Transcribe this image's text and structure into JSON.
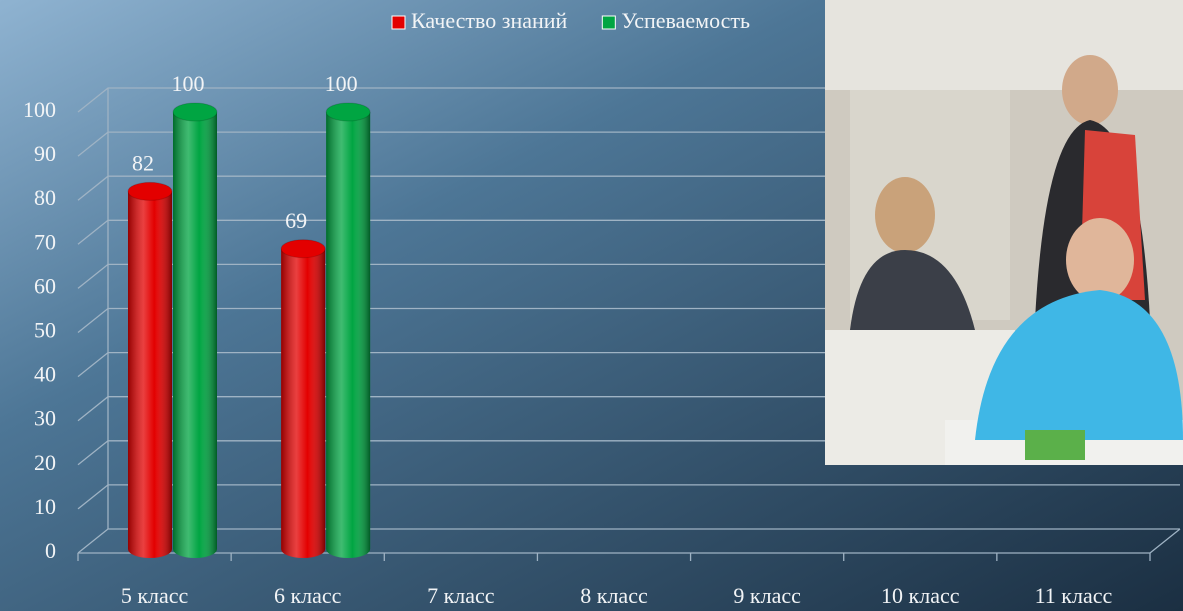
{
  "chart_data": {
    "type": "bar",
    "categories": [
      "5 класс",
      "6 класс",
      "7 класс",
      "8 класс",
      "9 класс",
      "10 класс",
      "11 класс"
    ],
    "series": [
      {
        "name": "Качество знаний",
        "color": "#e30000",
        "values": [
          82,
          69,
          null,
          null,
          null,
          null,
          null
        ]
      },
      {
        "name": "Успеваемость",
        "color": "#00a542",
        "values": [
          100,
          100,
          null,
          null,
          null,
          null,
          null
        ]
      }
    ],
    "ylim": [
      0,
      100
    ],
    "yticks": [
      0,
      10,
      20,
      30,
      40,
      50,
      60,
      70,
      80,
      90,
      100
    ],
    "grid": true,
    "legend": "top"
  }
}
